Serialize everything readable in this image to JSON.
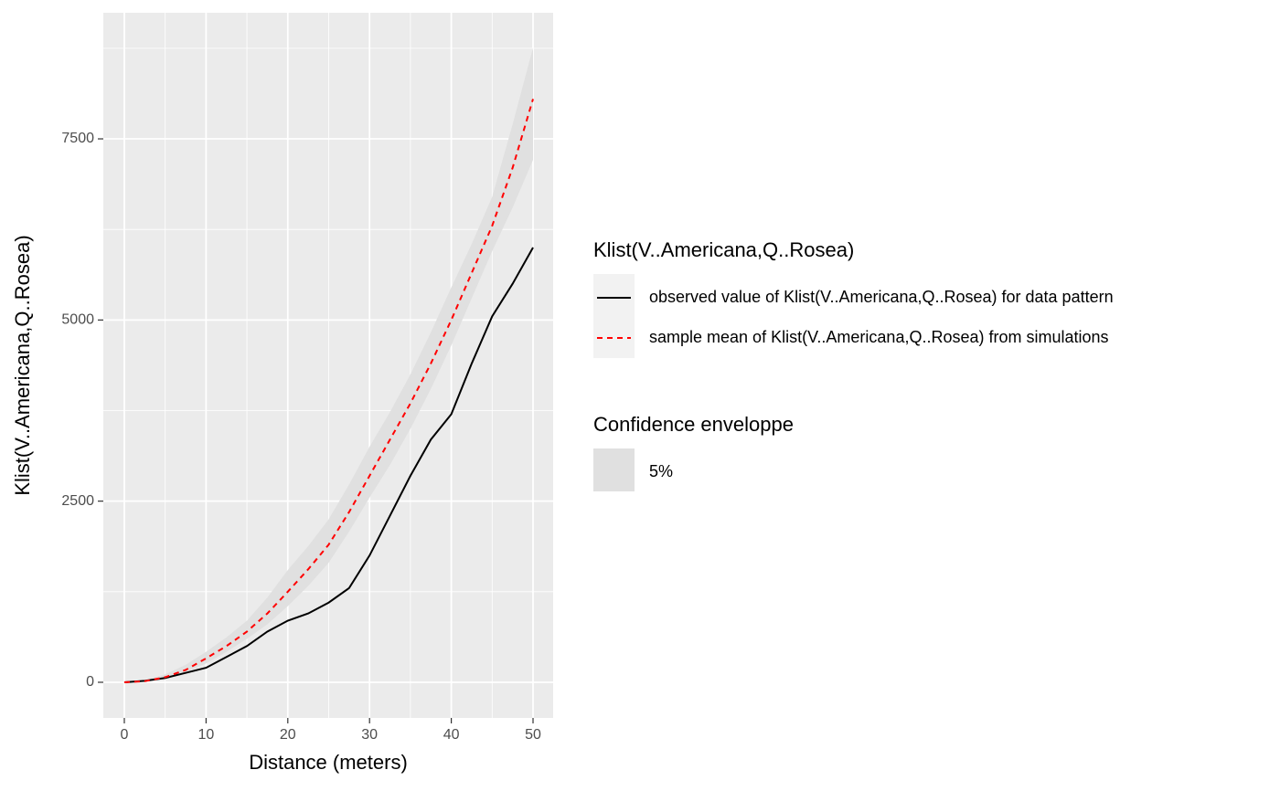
{
  "chart_data": {
    "type": "line",
    "xlabel": "Distance (meters)",
    "ylabel": "Klist(V..Americana,Q..Rosea)",
    "x": [
      0,
      2.5,
      5,
      7.5,
      10,
      12.5,
      15,
      17.5,
      20,
      22.5,
      25,
      27.5,
      30,
      32.5,
      35,
      37.5,
      40,
      42.5,
      45,
      47.5,
      50
    ],
    "series": [
      {
        "name": "observed value of Klist(V..Americana,Q..Rosea) for data pattern",
        "color": "#000000",
        "dash": "none",
        "values": [
          0,
          20,
          60,
          130,
          200,
          350,
          500,
          700,
          850,
          950,
          1100,
          1300,
          1750,
          2300,
          2850,
          3350,
          3700,
          4400,
          5050,
          5500,
          6000
        ]
      },
      {
        "name": "sample mean of Klist(V..Americana,Q..Rosea) from simulations",
        "color": "#ff0000",
        "dash": "6 5",
        "values": [
          0,
          15,
          70,
          170,
          330,
          500,
          700,
          950,
          1250,
          1560,
          1900,
          2350,
          2850,
          3350,
          3850,
          4400,
          5000,
          5650,
          6300,
          7100,
          8050
        ]
      }
    ],
    "legend_title": "Klist(V..Americana,Q..Rosea)",
    "envelope": {
      "title": "Confidence enveloppe",
      "name": "5%",
      "color": "#e0e0e0",
      "lower": [
        0,
        10,
        40,
        140,
        260,
        420,
        600,
        800,
        1050,
        1330,
        1650,
        2080,
        2550,
        3000,
        3500,
        4050,
        4650,
        5300,
        5950,
        6550,
        7210
      ],
      "upper": [
        0,
        30,
        110,
        240,
        420,
        620,
        850,
        1170,
        1550,
        1880,
        2250,
        2730,
        3250,
        3730,
        4250,
        4830,
        5450,
        6050,
        6700,
        7700,
        8760
      ]
    },
    "xlim": [
      -2.57,
      52.46
    ],
    "ylim": [
      -492,
      9240
    ],
    "xticks": [
      0,
      10,
      20,
      30,
      40,
      50
    ],
    "yticks": [
      0,
      2500,
      5000,
      7500
    ],
    "x_minor_breaks": [
      5,
      15,
      25,
      35,
      45
    ],
    "y_minor_breaks": [
      1250,
      3750,
      6250,
      8750
    ],
    "grid": true
  }
}
